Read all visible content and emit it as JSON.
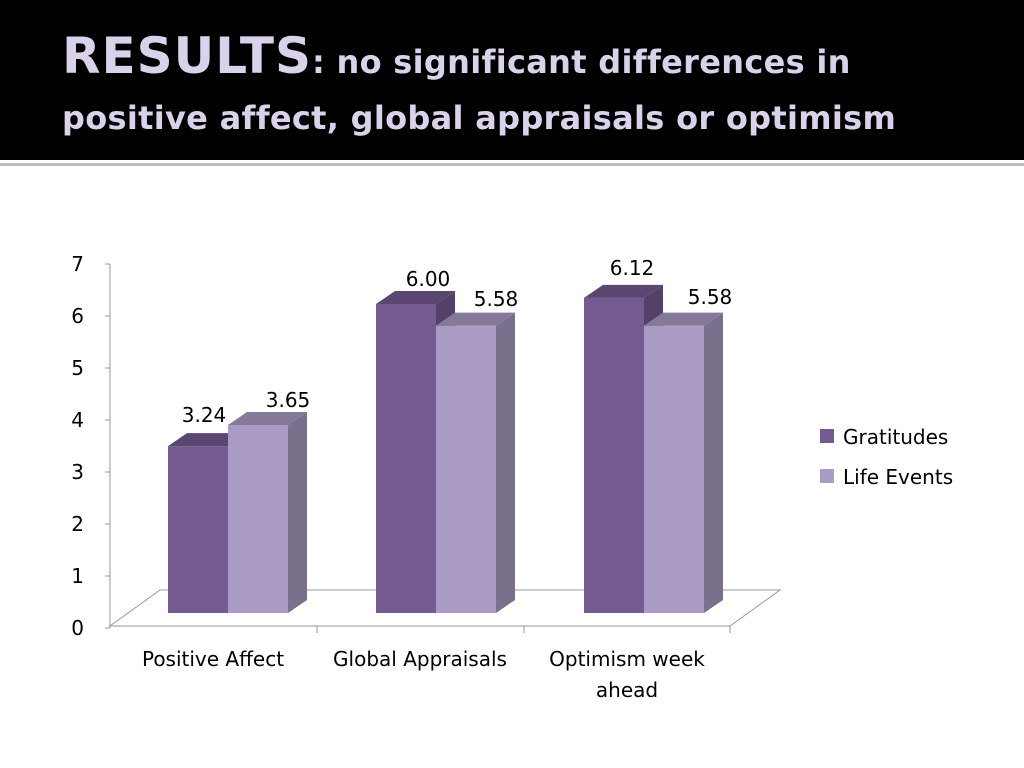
{
  "slide": {
    "title_main": "RESULTS",
    "title_rest": ": no significant differences in positive affect, global  appraisals or optimism"
  },
  "colors": {
    "gratitudes": "#735a91",
    "life_events": "#a99bc3",
    "header_bg": "#000000",
    "title_text": "#d9d2ea"
  },
  "chart_data": {
    "type": "bar",
    "style": "3d-clustered-column",
    "categories": [
      "Positive Affect",
      "Global Appraisals",
      "Optimism week ahead"
    ],
    "series": [
      {
        "name": "Gratitudes",
        "values": [
          3.24,
          6.0,
          6.12
        ],
        "labels": [
          "3.24",
          "6.00",
          "6.12"
        ]
      },
      {
        "name": "Life Events",
        "values": [
          3.65,
          5.58,
          5.58
        ],
        "labels": [
          "3.65",
          "5.58",
          "5.58"
        ]
      }
    ],
    "ylim": [
      0,
      7
    ],
    "yticks": [
      "0",
      "1",
      "2",
      "3",
      "4",
      "5",
      "6",
      "7"
    ],
    "xlabel": "",
    "ylabel": "",
    "grid": false,
    "legend": "right"
  }
}
